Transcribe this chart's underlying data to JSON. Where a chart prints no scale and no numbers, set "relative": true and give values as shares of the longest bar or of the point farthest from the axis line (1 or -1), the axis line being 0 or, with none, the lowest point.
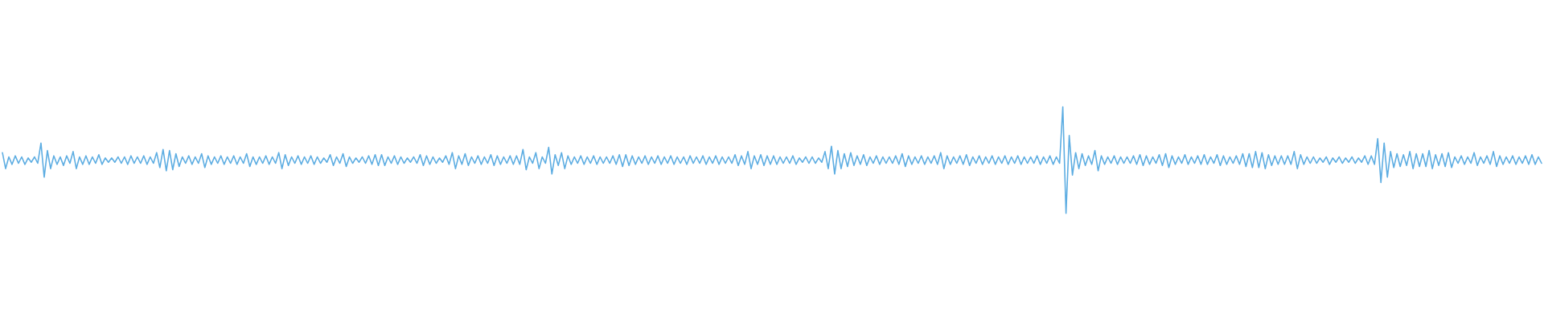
{
  "chart_data": {
    "type": "line",
    "relative": true,
    "color": "#5dade2",
    "categories": [
      null,
      null,
      null,
      null,
      null,
      null,
      null,
      null,
      null,
      null,
      null,
      null,
      null,
      null,
      null,
      null,
      null,
      null,
      null,
      null,
      null,
      null,
      null,
      null,
      null,
      null,
      null,
      null,
      null,
      null,
      null,
      null,
      null,
      null,
      null,
      null,
      null,
      null,
      null,
      null,
      null,
      null,
      null,
      null,
      null,
      null,
      null,
      null,
      null,
      null,
      null,
      null,
      null,
      null,
      null,
      null,
      null,
      null,
      null,
      null,
      null,
      null,
      null,
      null,
      null,
      null,
      null,
      null,
      null,
      null,
      null,
      null,
      null,
      null,
      null,
      null,
      null,
      null,
      null,
      null,
      null,
      null,
      null,
      null,
      null,
      null,
      null,
      null,
      null,
      null,
      null,
      null,
      null,
      null,
      null,
      null,
      null,
      null,
      null,
      null,
      null,
      null,
      null,
      null,
      null,
      null,
      null,
      null,
      null,
      null,
      null,
      null,
      null,
      null,
      null,
      null,
      null,
      null,
      null,
      null,
      null,
      null,
      null,
      null,
      null,
      null,
      null,
      null,
      null,
      null,
      null,
      null,
      null,
      null,
      null,
      null,
      null,
      null,
      null,
      null,
      null,
      null,
      null,
      null,
      null,
      null,
      null,
      null,
      null,
      null,
      null,
      null,
      null,
      null,
      null,
      null,
      null,
      null,
      null,
      null,
      null,
      null,
      null,
      null,
      null,
      null,
      null,
      null,
      null,
      null,
      null,
      null,
      null,
      null,
      null,
      null,
      null,
      null,
      null,
      null,
      null,
      null,
      null,
      null,
      null,
      null,
      null,
      null,
      null,
      null,
      null,
      null,
      null,
      null,
      null,
      null,
      null,
      null,
      null,
      null,
      null,
      null,
      null,
      null,
      null,
      null,
      null,
      null,
      null,
      null,
      null,
      null,
      null,
      null,
      null,
      null,
      null,
      null,
      null,
      null,
      null,
      null,
      null,
      null,
      null,
      null,
      null,
      null,
      null,
      null,
      null,
      null,
      null,
      null,
      null,
      null,
      null,
      null,
      null,
      null,
      null,
      null,
      null,
      null,
      null,
      null,
      null,
      null,
      null,
      null,
      null,
      null,
      null,
      null,
      null,
      null,
      null,
      null,
      null,
      null,
      null,
      null,
      null,
      null,
      null,
      null,
      null,
      null,
      null,
      null,
      null,
      null,
      null,
      null,
      null,
      null,
      null,
      null,
      null,
      null,
      null,
      null,
      null,
      null,
      null,
      null,
      null,
      null,
      null,
      null,
      null,
      null,
      null,
      null,
      null,
      null,
      null,
      null,
      null,
      null,
      null,
      null,
      null,
      null,
      null,
      null,
      null,
      null,
      null,
      null,
      null,
      null,
      null,
      null,
      null,
      null,
      null,
      null,
      null,
      null,
      null,
      null,
      null,
      null,
      null,
      null,
      null,
      null,
      null,
      null,
      null,
      null,
      null,
      null,
      null,
      null,
      null,
      null,
      null,
      null,
      null,
      null,
      null,
      null,
      null,
      null,
      null,
      null,
      null,
      null,
      null,
      null,
      null,
      null,
      null,
      null,
      null,
      null,
      null,
      null,
      null,
      null,
      null,
      null,
      null,
      null,
      null,
      null,
      null,
      null,
      null,
      null,
      null,
      null,
      null,
      null,
      null,
      null,
      null,
      null,
      null,
      null,
      null,
      null,
      null,
      null,
      null,
      null,
      null,
      null,
      null,
      null,
      null,
      null,
      null,
      null,
      null,
      null,
      null,
      null,
      null,
      null,
      null,
      null,
      null,
      null,
      null,
      null,
      null,
      null,
      null,
      null,
      null,
      null,
      null,
      null,
      null,
      null,
      null,
      null,
      null,
      null,
      null,
      null,
      null,
      null,
      null,
      null,
      null,
      null,
      null,
      null,
      null,
      null,
      null,
      null,
      null,
      null,
      null,
      null,
      null,
      null,
      null,
      null,
      null,
      null,
      null,
      null,
      null,
      null,
      null,
      null,
      null,
      null,
      null,
      null,
      null,
      null,
      null,
      null,
      null,
      null,
      null,
      null,
      null,
      null,
      null,
      null,
      null,
      null,
      null,
      null,
      null,
      null,
      null,
      null,
      null,
      null,
      null,
      null
    ],
    "values": [
      0.57,
      0.42,
      0.53,
      0.46,
      0.54,
      0.47,
      0.53,
      0.46,
      0.52,
      0.48,
      0.53,
      0.47,
      0.66,
      0.34,
      0.59,
      0.42,
      0.54,
      0.46,
      0.53,
      0.45,
      0.54,
      0.47,
      0.58,
      0.42,
      0.53,
      0.46,
      0.54,
      0.46,
      0.53,
      0.47,
      0.55,
      0.46,
      0.52,
      0.48,
      0.52,
      0.48,
      0.53,
      0.47,
      0.53,
      0.46,
      0.54,
      0.47,
      0.53,
      0.47,
      0.54,
      0.46,
      0.53,
      0.47,
      0.57,
      0.43,
      0.6,
      0.4,
      0.59,
      0.41,
      0.56,
      0.44,
      0.53,
      0.47,
      0.54,
      0.46,
      0.53,
      0.47,
      0.56,
      0.43,
      0.54,
      0.46,
      0.53,
      0.47,
      0.54,
      0.46,
      0.53,
      0.47,
      0.54,
      0.46,
      0.53,
      0.47,
      0.56,
      0.44,
      0.53,
      0.46,
      0.53,
      0.47,
      0.54,
      0.46,
      0.53,
      0.47,
      0.57,
      0.42,
      0.55,
      0.45,
      0.53,
      0.47,
      0.54,
      0.46,
      0.53,
      0.47,
      0.54,
      0.46,
      0.53,
      0.47,
      0.52,
      0.48,
      0.55,
      0.45,
      0.53,
      0.47,
      0.56,
      0.44,
      0.53,
      0.47,
      0.52,
      0.48,
      0.53,
      0.47,
      0.54,
      0.46,
      0.55,
      0.45,
      0.55,
      0.45,
      0.53,
      0.47,
      0.54,
      0.46,
      0.53,
      0.47,
      0.52,
      0.48,
      0.53,
      0.47,
      0.55,
      0.45,
      0.54,
      0.46,
      0.53,
      0.47,
      0.52,
      0.48,
      0.54,
      0.46,
      0.57,
      0.42,
      0.54,
      0.46,
      0.56,
      0.45,
      0.53,
      0.47,
      0.54,
      0.46,
      0.53,
      0.47,
      0.55,
      0.45,
      0.54,
      0.46,
      0.53,
      0.47,
      0.54,
      0.46,
      0.54,
      0.46,
      0.6,
      0.41,
      0.53,
      0.47,
      0.57,
      0.42,
      0.53,
      0.47,
      0.62,
      0.37,
      0.55,
      0.45,
      0.57,
      0.42,
      0.54,
      0.46,
      0.53,
      0.47,
      0.54,
      0.46,
      0.53,
      0.47,
      0.54,
      0.46,
      0.53,
      0.47,
      0.53,
      0.47,
      0.54,
      0.46,
      0.55,
      0.44,
      0.55,
      0.45,
      0.54,
      0.46,
      0.53,
      0.47,
      0.54,
      0.46,
      0.53,
      0.47,
      0.54,
      0.46,
      0.53,
      0.47,
      0.54,
      0.46,
      0.53,
      0.47,
      0.53,
      0.46,
      0.54,
      0.47,
      0.53,
      0.47,
      0.54,
      0.46,
      0.53,
      0.47,
      0.54,
      0.46,
      0.53,
      0.47,
      0.53,
      0.47,
      0.55,
      0.45,
      0.54,
      0.46,
      0.58,
      0.42,
      0.54,
      0.46,
      0.55,
      0.45,
      0.54,
      0.46,
      0.54,
      0.46,
      0.53,
      0.47,
      0.53,
      0.47,
      0.54,
      0.46,
      0.52,
      0.48,
      0.53,
      0.47,
      0.53,
      0.47,
      0.52,
      0.48,
      0.58,
      0.42,
      0.63,
      0.37,
      0.59,
      0.42,
      0.56,
      0.44,
      0.57,
      0.45,
      0.54,
      0.46,
      0.55,
      0.45,
      0.53,
      0.47,
      0.54,
      0.46,
      0.53,
      0.47,
      0.53,
      0.47,
      0.54,
      0.46,
      0.56,
      0.44,
      0.54,
      0.46,
      0.53,
      0.47,
      0.54,
      0.46,
      0.53,
      0.47,
      0.54,
      0.46,
      0.57,
      0.42,
      0.54,
      0.46,
      0.53,
      0.47,
      0.54,
      0.46,
      0.55,
      0.45,
      0.53,
      0.47,
      0.54,
      0.46,
      0.53,
      0.47,
      0.54,
      0.46,
      0.53,
      0.47,
      0.54,
      0.46,
      0.53,
      0.47,
      0.54,
      0.46,
      0.53,
      0.47,
      0.53,
      0.47,
      0.54,
      0.46,
      0.53,
      0.47,
      0.54,
      0.46,
      0.53,
      0.47,
      1,
      0,
      0.73,
      0.36,
      0.57,
      0.42,
      0.56,
      0.45,
      0.54,
      0.46,
      0.59,
      0.4,
      0.54,
      0.46,
      0.53,
      0.47,
      0.54,
      0.46,
      0.53,
      0.47,
      0.53,
      0.47,
      0.54,
      0.46,
      0.55,
      0.45,
      0.54,
      0.46,
      0.53,
      0.47,
      0.55,
      0.45,
      0.56,
      0.43,
      0.54,
      0.46,
      0.53,
      0.47,
      0.55,
      0.46,
      0.53,
      0.47,
      0.54,
      0.46,
      0.55,
      0.46,
      0.53,
      0.47,
      0.55,
      0.45,
      0.54,
      0.46,
      0.53,
      0.47,
      0.54,
      0.46,
      0.56,
      0.44,
      0.56,
      0.43,
      0.58,
      0.43,
      0.57,
      0.42,
      0.55,
      0.45,
      0.54,
      0.46,
      0.54,
      0.46,
      0.54,
      0.46,
      0.58,
      0.42,
      0.55,
      0.46,
      0.53,
      0.47,
      0.53,
      0.47,
      0.52,
      0.48,
      0.53,
      0.46,
      0.52,
      0.48,
      0.53,
      0.47,
      0.52,
      0.48,
      0.53,
      0.47,
      0.52,
      0.48,
      0.54,
      0.46,
      0.54,
      0.46,
      0.7,
      0.29,
      0.66,
      0.34,
      0.58,
      0.43,
      0.56,
      0.44,
      0.55,
      0.45,
      0.58,
      0.42,
      0.56,
      0.44,
      0.56,
      0.44,
      0.59,
      0.42,
      0.55,
      0.45,
      0.56,
      0.44,
      0.57,
      0.43,
      0.53,
      0.47,
      0.54,
      0.46,
      0.53,
      0.47,
      0.57,
      0.45,
      0.53,
      0.47,
      0.54,
      0.46,
      0.58,
      0.44,
      0.54,
      0.46,
      0.53,
      0.47,
      0.54,
      0.46,
      0.53,
      0.47,
      0.54,
      0.46,
      0.55,
      0.46,
      0.53,
      0.47
    ]
  }
}
